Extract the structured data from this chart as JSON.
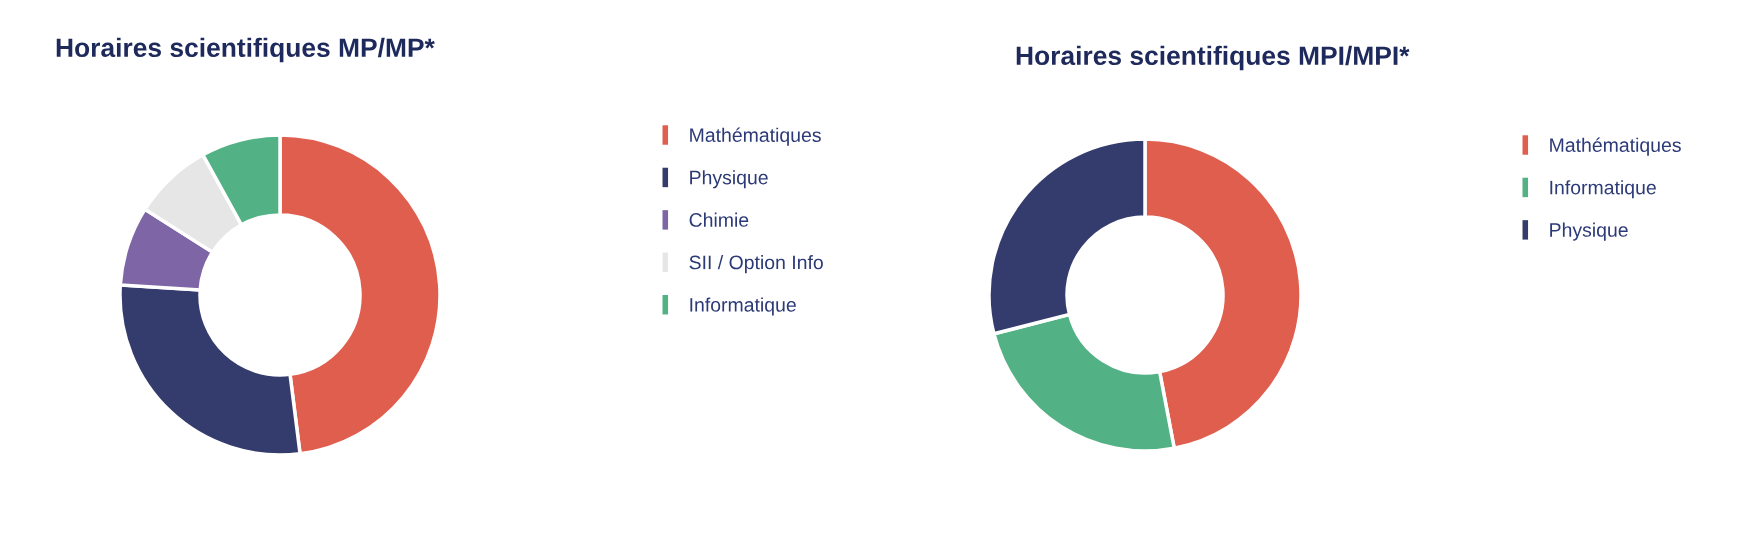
{
  "chart_data": [
    {
      "type": "donut",
      "title": "Horaires scientifiques MP/MP*",
      "legend": "right",
      "categories": [
        "Mathématiques",
        "Physique",
        "Chimie",
        "SII / Option Info",
        "Informatique"
      ],
      "values": [
        48,
        28,
        8,
        8,
        8
      ],
      "colors": [
        "#e05e4e",
        "#343c6e",
        "#7e66a6",
        "#e6e6e6",
        "#52b185"
      ]
    },
    {
      "type": "donut",
      "title": "Horaires scientifiques MPI/MPI*",
      "legend": "right",
      "categories": [
        "Mathématiques",
        "Informatique",
        "Physique"
      ],
      "values": [
        47,
        24,
        29
      ],
      "colors": [
        "#e05e4e",
        "#52b185",
        "#343c6e"
      ]
    }
  ]
}
